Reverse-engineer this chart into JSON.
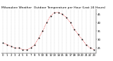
{
  "title": "Milwaukee Weather  Outdoor Temperature per Hour (Last 24 Hours)",
  "hours": [
    0,
    1,
    2,
    3,
    4,
    5,
    6,
    7,
    8,
    9,
    10,
    11,
    12,
    13,
    14,
    15,
    16,
    17,
    18,
    19,
    20,
    21,
    22,
    23
  ],
  "temperatures": [
    28,
    27,
    26,
    25,
    25,
    24,
    24,
    25,
    27,
    31,
    35,
    40,
    44,
    46,
    46,
    45,
    43,
    40,
    36,
    33,
    30,
    27,
    25,
    24
  ],
  "line_color": "#dd0000",
  "marker_color": "#000000",
  "bg_color": "#ffffff",
  "plot_bg_color": "#ffffff",
  "grid_color": "#aaaaaa",
  "ylim": [
    22,
    48
  ],
  "yticks": [
    25,
    30,
    35,
    40,
    45
  ],
  "title_fontsize": 3.2,
  "tick_fontsize": 2.8
}
